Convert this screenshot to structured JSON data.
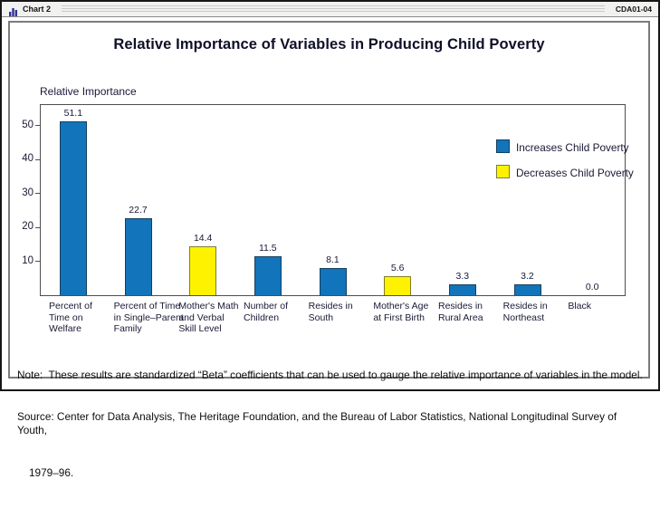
{
  "window": {
    "title": "Chart 2",
    "code": "CDA01-04"
  },
  "chart_data": {
    "type": "bar",
    "title": "Relative Importance of Variables in Producing Child Poverty",
    "ylabel": "Relative Importance",
    "xlabel": "",
    "ylim": [
      0,
      56
    ],
    "yticks": [
      10,
      20,
      30,
      40,
      50
    ],
    "grid": false,
    "legend_position": "top-right",
    "legend": [
      {
        "label": "Increases Child Poverty",
        "type": "increase"
      },
      {
        "label": "Decreases Child Poverty",
        "type": "decrease"
      }
    ],
    "categories": [
      {
        "lines": [
          "Percent of",
          "Time on",
          "Welfare"
        ],
        "value": 51.1,
        "value_label": "51.1",
        "type": "increase"
      },
      {
        "lines": [
          "Percent of Time",
          "in Single–Parent",
          "Family"
        ],
        "value": 22.7,
        "value_label": "22.7",
        "type": "increase"
      },
      {
        "lines": [
          "Mother's Math",
          "and Verbal",
          "Skill Level"
        ],
        "value": 14.4,
        "value_label": "14.4",
        "type": "decrease"
      },
      {
        "lines": [
          "Number of",
          "Children"
        ],
        "value": 11.5,
        "value_label": "11.5",
        "type": "increase"
      },
      {
        "lines": [
          "Resides in",
          "South"
        ],
        "value": 8.1,
        "value_label": "8.1",
        "type": "increase"
      },
      {
        "lines": [
          "Mother's Age",
          "at First Birth"
        ],
        "value": 5.6,
        "value_label": "5.6",
        "type": "decrease"
      },
      {
        "lines": [
          "Resides in",
          "Rural Area"
        ],
        "value": 3.3,
        "value_label": "3.3",
        "type": "increase"
      },
      {
        "lines": [
          "Resides in",
          "Northeast"
        ],
        "value": 3.2,
        "value_label": "3.2",
        "type": "increase"
      },
      {
        "lines": [
          "Black"
        ],
        "value": 0.0,
        "value_label": "0.0",
        "type": "increase"
      }
    ],
    "notes": {
      "note": "Note:  These results are standardized “Beta” coefficients that can be used to gauge the relative importance of variables in the model.",
      "source_line1": "Source: Center for Data Analysis, The Heritage Foundation, and the Bureau of Labor Statistics, National Longitudinal Survey of Youth,",
      "source_line2": "1979–96."
    }
  },
  "colors": {
    "increase_fill": "#1274ba",
    "increase_border": "#17405f",
    "decrease_fill": "#fff200",
    "decrease_border": "#7f7f2a",
    "text": "#191936"
  }
}
